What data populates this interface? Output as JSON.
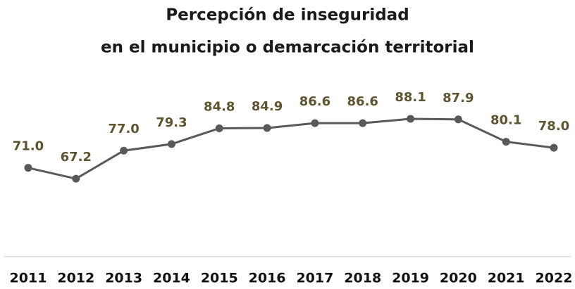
{
  "chart_data": {
    "type": "line",
    "title": [
      "Percepción de inseguridad",
      "en el municipio o demarcación territorial"
    ],
    "categories": [
      "2011",
      "2012",
      "2013",
      "2014",
      "2015",
      "2016",
      "2017",
      "2018",
      "2019",
      "2020",
      "2021",
      "2022"
    ],
    "series": [
      {
        "color": "#595959",
        "values": [
          71.0,
          67.2,
          77.0,
          79.3,
          84.8,
          84.9,
          86.6,
          86.6,
          88.1,
          87.9,
          80.1,
          78.0
        ],
        "value_labels": [
          "71.0",
          "67.2",
          "77.0",
          "79.3",
          "84.8",
          "84.9",
          "86.6",
          "86.6",
          "88.1",
          "87.9",
          "80.1",
          "78.0"
        ],
        "label_color": "#5e5430"
      }
    ],
    "ylim": [
      40,
      100
    ]
  }
}
